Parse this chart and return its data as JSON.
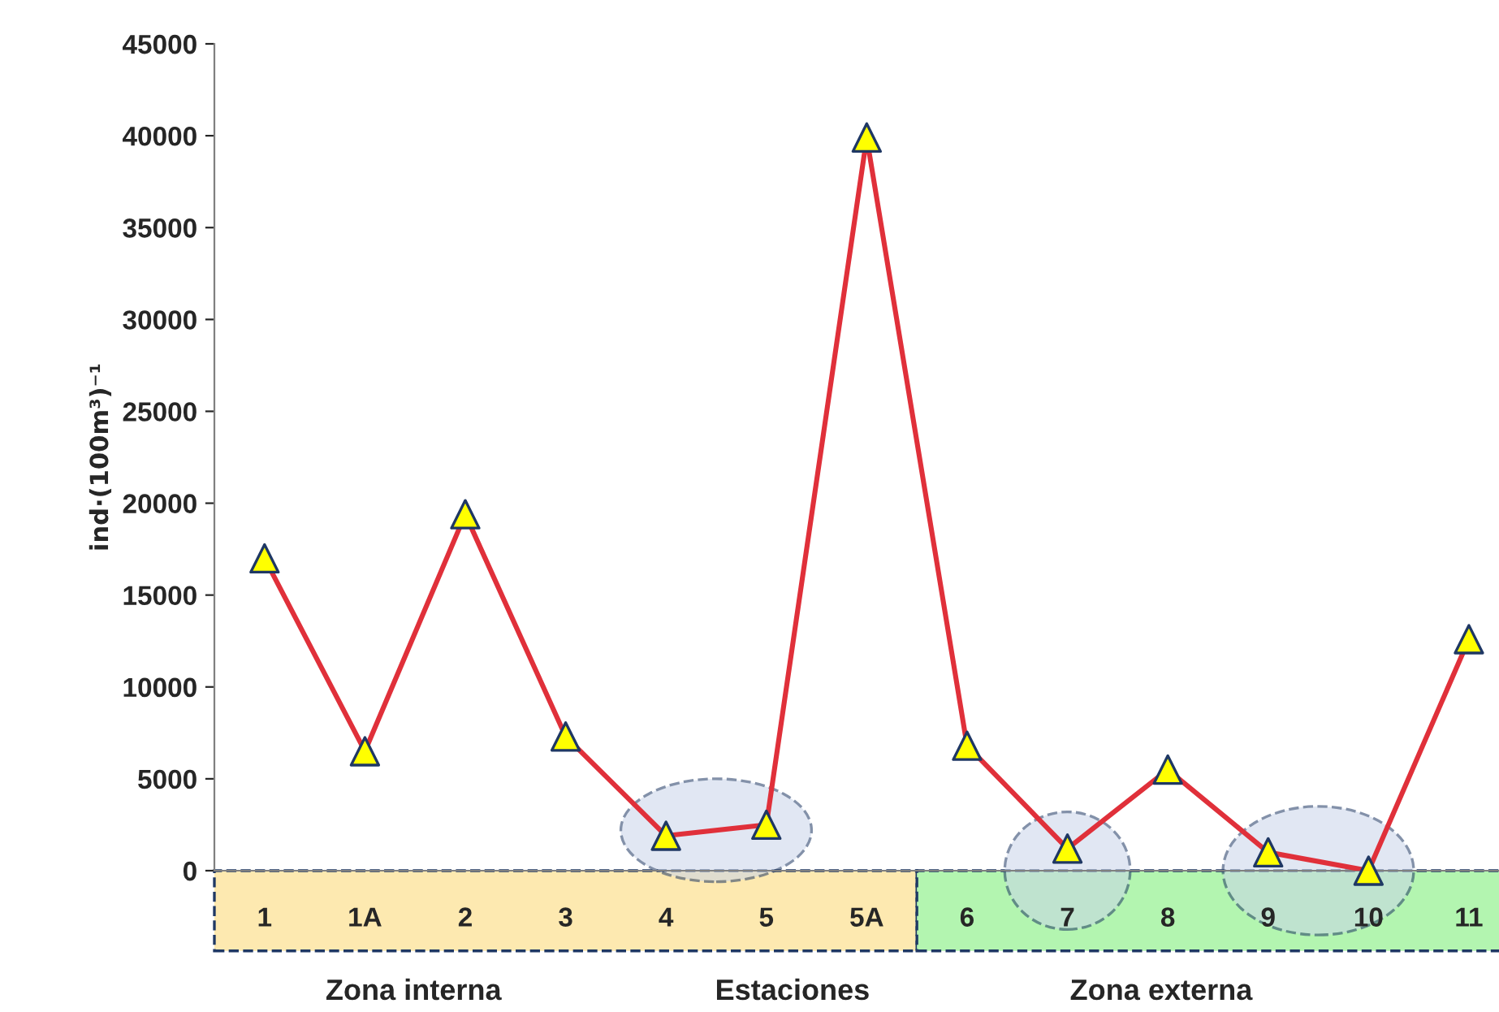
{
  "chart_data": {
    "type": "line",
    "xlabel": "Estaciones",
    "ylabel": "ind·(100m³)⁻¹",
    "categories": [
      "1",
      "1A",
      "2",
      "3",
      "4",
      "5",
      "5A",
      "6",
      "7",
      "8",
      "9",
      "10",
      "11"
    ],
    "series": [
      {
        "color": "#e0303a",
        "values": [
          17000,
          6500,
          19400,
          7300,
          1900,
          2500,
          39900,
          6800,
          1200,
          5500,
          1000,
          0,
          12600
        ]
      }
    ],
    "marker": "triangle",
    "line_style": "solid",
    "ylim": [
      0,
      45000
    ],
    "yticks": [
      0,
      5000,
      10000,
      15000,
      20000,
      25000,
      30000,
      35000,
      40000,
      45000
    ],
    "annotations": [
      "Zona interna",
      "Zona externa"
    ]
  }
}
